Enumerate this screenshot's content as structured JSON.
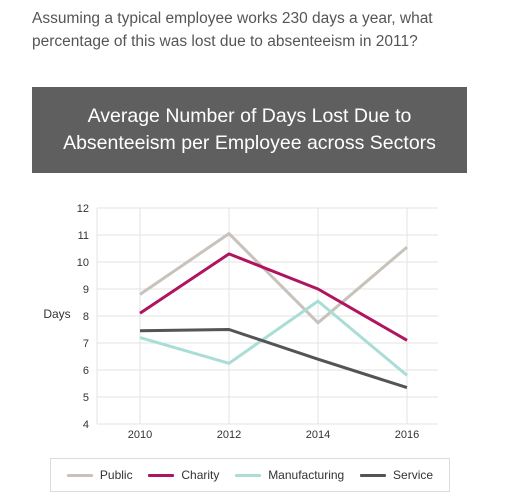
{
  "question": "Assuming a typical employee works 230 days a year, what percentage of this was lost due to absenteeism in 2011?",
  "chart_data": {
    "type": "line",
    "title": "Average Number of Days Lost Due to Absenteeism per Employee across Sectors",
    "ylabel": "Days",
    "xlabel": "",
    "ylim": [
      4,
      12
    ],
    "yticks": [
      4,
      5,
      6,
      7,
      8,
      9,
      10,
      11,
      12
    ],
    "x": [
      2010,
      2012,
      2014,
      2016
    ],
    "grid": "horizontal and vertical",
    "legend_position": "bottom",
    "series": [
      {
        "name": "Public",
        "color": "#c8c2bb",
        "values": [
          8.8,
          11.05,
          7.75,
          10.55
        ]
      },
      {
        "name": "Charity",
        "color": "#b0145f",
        "values": [
          8.1,
          10.3,
          9.0,
          7.1
        ]
      },
      {
        "name": "Manufacturing",
        "color": "#a9ddd6",
        "values": [
          7.2,
          6.25,
          8.55,
          5.8
        ]
      },
      {
        "name": "Service",
        "color": "#545454",
        "values": [
          7.45,
          7.5,
          6.4,
          5.35
        ]
      }
    ]
  }
}
